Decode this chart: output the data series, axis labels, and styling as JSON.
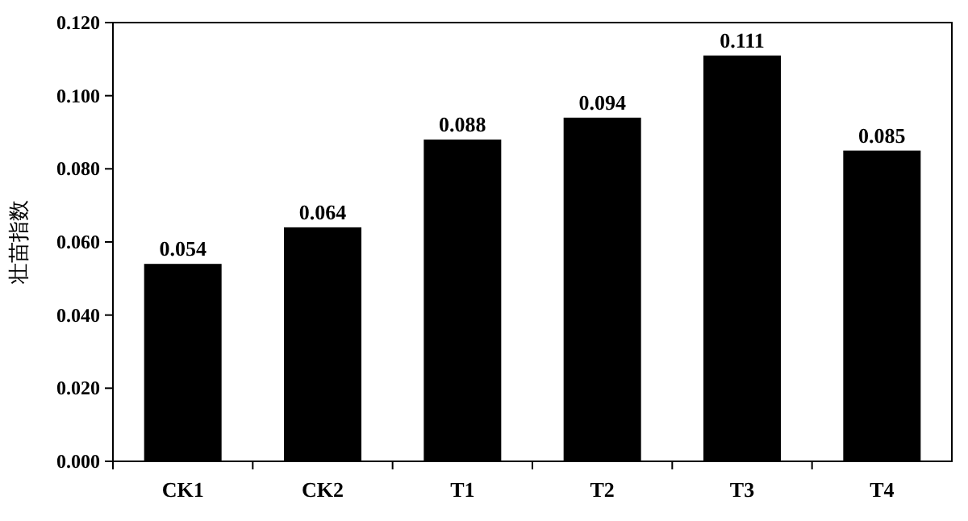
{
  "chart_data": {
    "type": "bar",
    "ylabel": "壮苗指数",
    "categories": [
      "CK1",
      "CK2",
      "T1",
      "T2",
      "T3",
      "T4"
    ],
    "values": [
      0.054,
      0.064,
      0.088,
      0.094,
      0.111,
      0.085
    ],
    "color": "#000000",
    "data_labels": true,
    "ylim": [
      0,
      0.12
    ],
    "yticks": [
      {
        "value": 0,
        "label": "0.000"
      },
      {
        "value": 0.02,
        "label": "0.020"
      },
      {
        "value": 0.04,
        "label": "0.040"
      },
      {
        "value": 0.06,
        "label": "0.060"
      },
      {
        "value": 0.08,
        "label": "0.080"
      },
      {
        "value": 0.1,
        "label": "0.100"
      },
      {
        "value": 0.12,
        "label": "0.120"
      }
    ]
  }
}
